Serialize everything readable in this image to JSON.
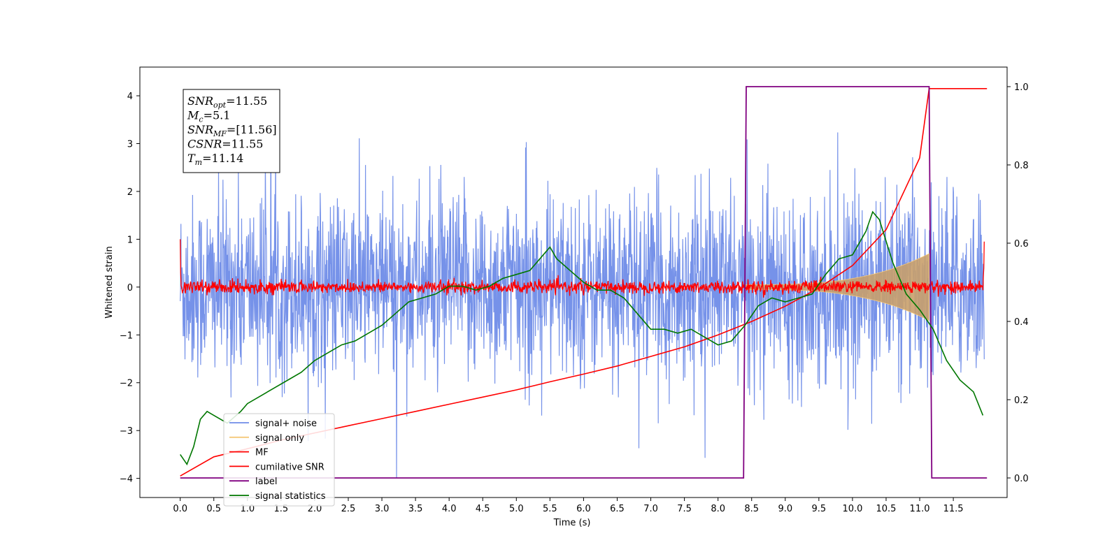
{
  "chart_data": {
    "type": "line",
    "xlabel": "Time (s)",
    "ylabel": "Whitened strain",
    "xlim": [
      -0.6,
      12.3
    ],
    "ylim": [
      -4.4,
      4.6
    ],
    "ylim_right": [
      -0.05,
      1.05
    ],
    "x_ticks": [
      "0.0",
      "0.5",
      "1.0",
      "1.5",
      "2.0",
      "2.5",
      "3.0",
      "3.5",
      "4.0",
      "4.5",
      "5.0",
      "5.5",
      "6.0",
      "6.5",
      "7.0",
      "7.5",
      "8.0",
      "8.5",
      "9.0",
      "9.5",
      "10.0",
      "10.5",
      "11.0",
      "11.5"
    ],
    "y_ticks": [
      "4",
      "3",
      "2",
      "1",
      "0",
      "−1",
      "−2",
      "−3",
      "−4"
    ],
    "y_ticks_right": [
      "1.0",
      "0.8",
      "0.6",
      "0.4",
      "0.2",
      "0.0"
    ],
    "annotation": {
      "lines": [
        {
          "var": "SNR",
          "sub": "opt",
          "value": "=11.55"
        },
        {
          "var": "M",
          "sub": "c",
          "value": "=5.1"
        },
        {
          "var": "SNR",
          "sub": "MF",
          "value": "=[11.56]"
        },
        {
          "var": "CSNR",
          "sub": "",
          "value": "=11.55"
        },
        {
          "var": "T",
          "sub": "m",
          "value": "=11.14"
        }
      ]
    },
    "legend_position": "lower-left",
    "series": [
      {
        "name": "signal+ noise",
        "color": "#6f8ce8",
        "axis": "left",
        "description": "dense noise trace, roughly within ±2.5 with spikes to ±4"
      },
      {
        "name": "signal only",
        "color": "#f5c87a",
        "axis": "left",
        "description": "chirp growing from ~0 at 8.4 s to ±0.7 at 11.14 s"
      },
      {
        "name": "MF",
        "color": "#ff0000",
        "axis": "left",
        "description": "matched filter output, noise about ±0.2 around 0, spike ~1.0 at 0 s and ~0.95 at 12 s"
      },
      {
        "name": "cumilative SNR",
        "color": "#ff0000",
        "axis": "left",
        "x": [
          0.0,
          0.5,
          1.0,
          1.5,
          2.0,
          2.5,
          3.0,
          3.5,
          4.0,
          4.5,
          5.0,
          5.5,
          6.0,
          6.5,
          7.0,
          7.5,
          8.0,
          8.5,
          9.0,
          9.5,
          10.0,
          10.5,
          11.0,
          11.14,
          11.5,
          12.0
        ],
        "y": [
          -3.95,
          -3.55,
          -3.38,
          -3.2,
          -3.05,
          -2.9,
          -2.75,
          -2.6,
          -2.45,
          -2.3,
          -2.15,
          -1.98,
          -1.82,
          -1.65,
          -1.45,
          -1.25,
          -1.0,
          -0.72,
          -0.4,
          -0.02,
          0.45,
          1.2,
          2.7,
          4.15,
          4.15,
          4.15
        ]
      },
      {
        "name": "label",
        "color": "#800080",
        "axis": "right",
        "x": [
          0.0,
          8.38,
          8.42,
          11.14,
          11.18,
          12.0
        ],
        "y": [
          0.0,
          0.0,
          1.0,
          1.0,
          0.0,
          0.0
        ]
      },
      {
        "name": "signal statistics",
        "color": "#007700",
        "axis": "right",
        "x": [
          0.0,
          0.1,
          0.2,
          0.3,
          0.4,
          0.5,
          0.7,
          0.9,
          1.0,
          1.2,
          1.4,
          1.6,
          1.8,
          2.0,
          2.2,
          2.4,
          2.6,
          2.8,
          3.0,
          3.2,
          3.4,
          3.6,
          3.8,
          4.0,
          4.2,
          4.4,
          4.6,
          4.8,
          5.0,
          5.2,
          5.4,
          5.5,
          5.6,
          5.8,
          6.0,
          6.2,
          6.4,
          6.6,
          6.8,
          7.0,
          7.2,
          7.4,
          7.6,
          7.8,
          8.0,
          8.2,
          8.4,
          8.6,
          8.8,
          9.0,
          9.2,
          9.4,
          9.6,
          9.8,
          10.0,
          10.2,
          10.3,
          10.4,
          10.6,
          10.8,
          11.0,
          11.2,
          11.4,
          11.6,
          11.8,
          11.94
        ],
        "y": [
          0.06,
          0.035,
          0.08,
          0.15,
          0.17,
          0.16,
          0.14,
          0.17,
          0.19,
          0.21,
          0.23,
          0.25,
          0.27,
          0.3,
          0.32,
          0.34,
          0.35,
          0.37,
          0.39,
          0.42,
          0.45,
          0.46,
          0.47,
          0.49,
          0.49,
          0.48,
          0.49,
          0.51,
          0.52,
          0.53,
          0.57,
          0.59,
          0.56,
          0.53,
          0.5,
          0.48,
          0.48,
          0.46,
          0.42,
          0.38,
          0.38,
          0.37,
          0.38,
          0.36,
          0.34,
          0.35,
          0.39,
          0.44,
          0.46,
          0.45,
          0.46,
          0.47,
          0.52,
          0.56,
          0.57,
          0.63,
          0.68,
          0.66,
          0.55,
          0.47,
          0.43,
          0.38,
          0.3,
          0.25,
          0.22,
          0.16
        ]
      }
    ]
  }
}
